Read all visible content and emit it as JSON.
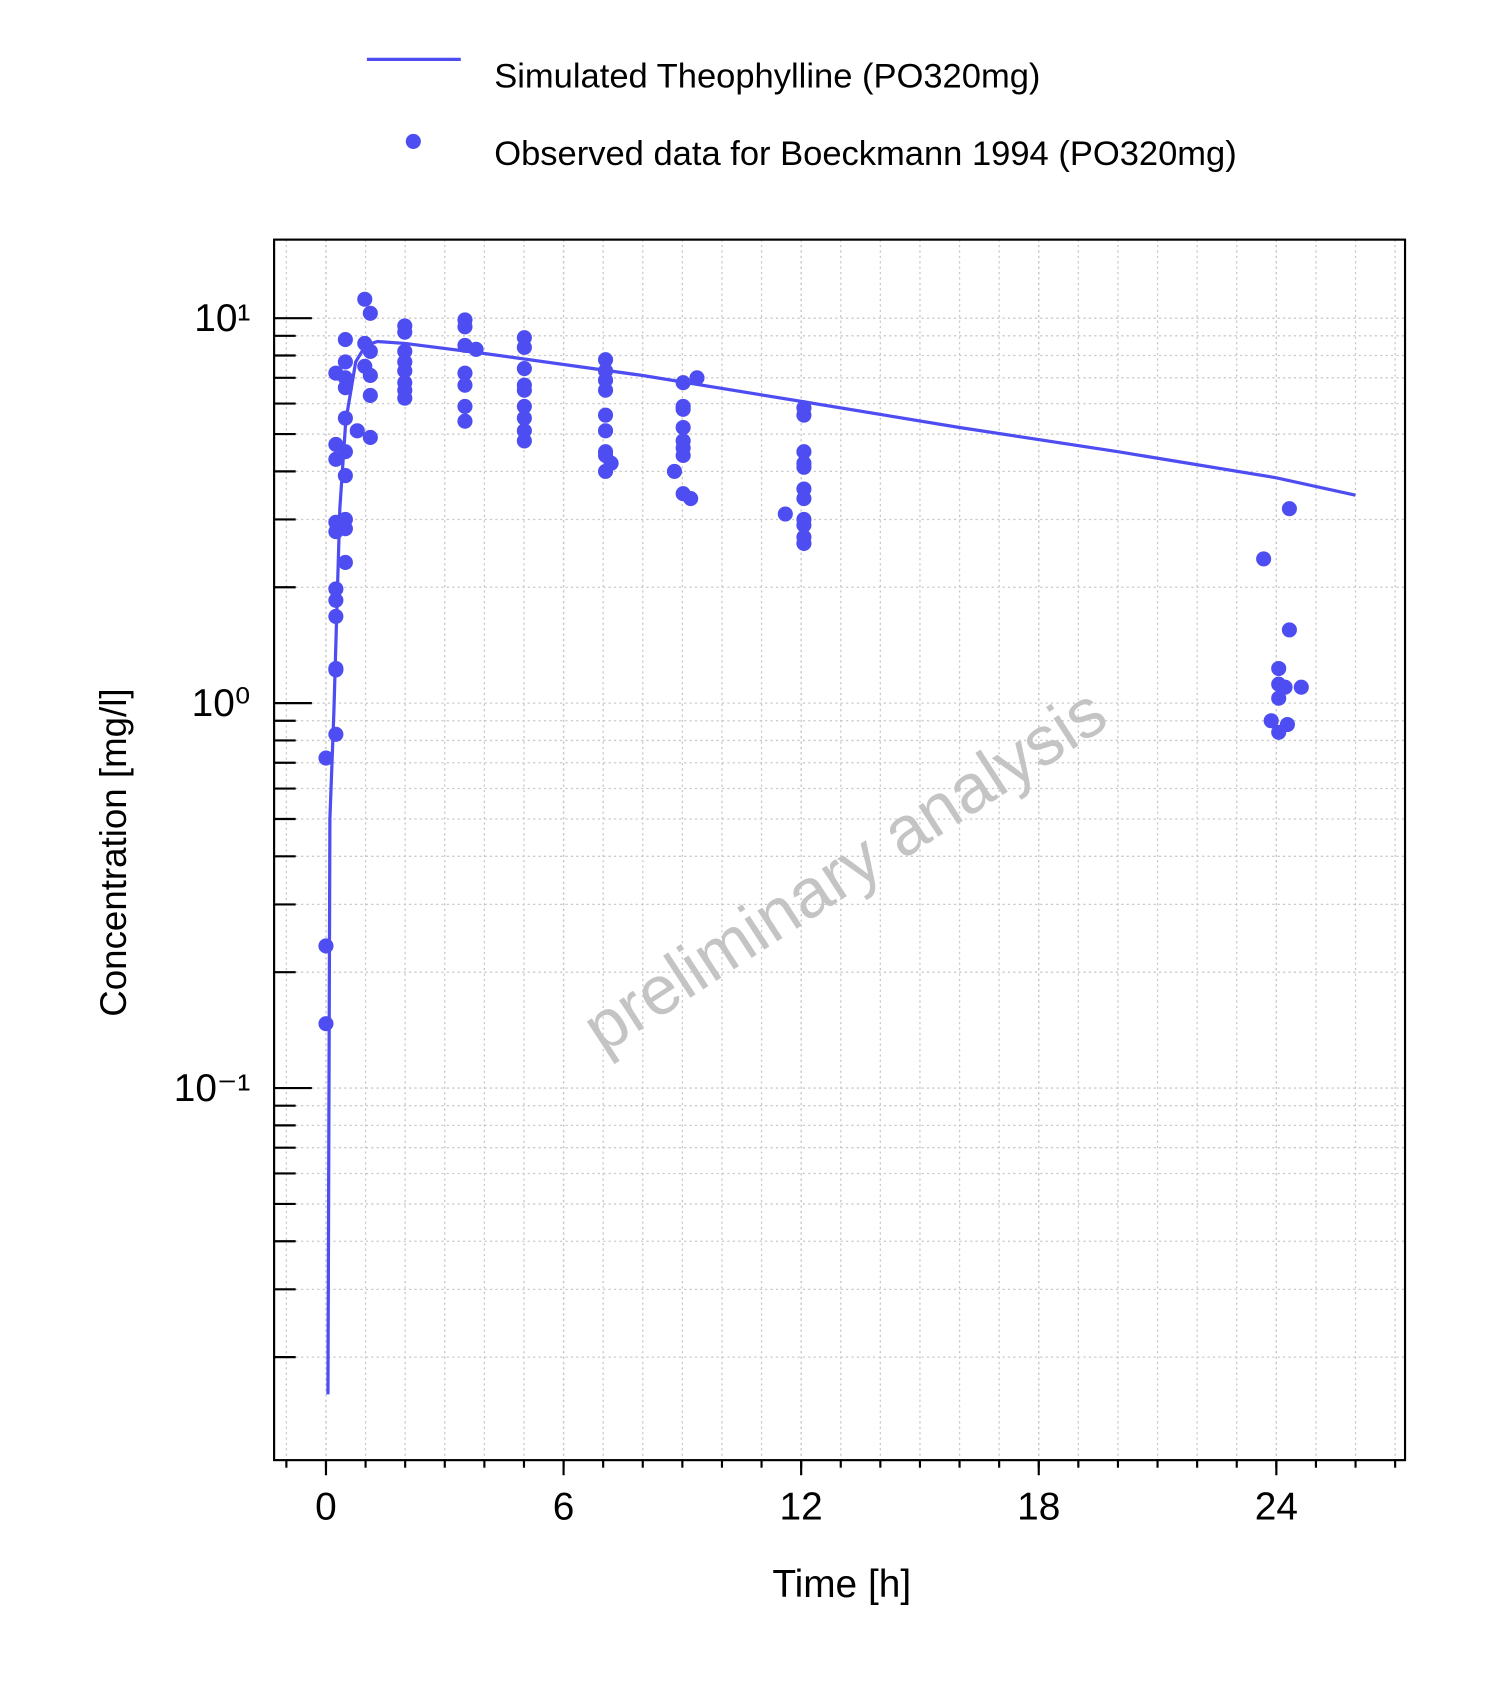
{
  "chart_data": {
    "type": "line",
    "x_label": "Time [h]",
    "y_label": "Concentration [mg/l]",
    "annotation": "preliminary analysis",
    "ylog": true,
    "grid": true,
    "legend": "top",
    "x_minor_step": 1,
    "xlim": [
      -1.31,
      27.25
    ],
    "xticks": [
      0,
      6,
      12,
      18,
      24
    ],
    "ylim": [
      0.0108,
      16
    ],
    "yticks": [
      {
        "value": 0.1,
        "label": "10⁻¹"
      },
      {
        "value": 1,
        "label": "10⁰"
      },
      {
        "value": 10,
        "label": "10¹"
      }
    ],
    "series": [
      {
        "name": "Simulated Theophylline (PO320mg)",
        "type": "line",
        "color": "#4d4df2",
        "x": [
          0.05,
          0.1,
          0.2,
          0.35,
          0.5,
          0.75,
          1.0,
          1.3,
          2,
          4,
          8,
          12,
          16,
          20,
          24,
          26
        ],
        "values": [
          0.016,
          0.5,
          0.95,
          3.2,
          5.4,
          7.7,
          8.5,
          8.7,
          8.6,
          8.1,
          7.1,
          6.08,
          5.2,
          4.5,
          3.85,
          3.47
        ]
      },
      {
        "name": "Observed data for Boeckmann 1994 (PO320mg)",
        "type": "scatter",
        "color": "#4d4df2",
        "x": [
          0,
          0,
          0,
          0.25,
          0.25,
          0.25,
          0.25,
          0.25,
          0.25,
          0.25,
          0.25,
          0.25,
          0.25,
          0.25,
          0.49,
          0.49,
          0.49,
          0.49,
          0.49,
          0.49,
          0.49,
          0.49,
          0.49,
          0.49,
          0.79,
          0.98,
          0.98,
          0.98,
          1.12,
          1.12,
          1.12,
          1.12,
          1.12,
          1.99,
          1.99,
          1.99,
          1.99,
          1.99,
          1.99,
          1.99,
          1.99,
          3.51,
          3.51,
          3.51,
          3.51,
          3.51,
          3.51,
          3.51,
          3.79,
          5.01,
          5.01,
          5.01,
          5.01,
          5.01,
          5.01,
          5.01,
          5.01,
          5.01,
          7.06,
          7.06,
          7.06,
          7.06,
          7.06,
          7.06,
          7.06,
          7.06,
          7.06,
          7.2,
          9.02,
          9.02,
          9.02,
          9.02,
          9.02,
          9.02,
          9.02,
          9.02,
          9.37,
          9.21,
          8.8,
          12.07,
          12.07,
          12.07,
          12.07,
          12.07,
          12.07,
          12.07,
          12.07,
          12.07,
          12.07,
          12.07,
          11.6,
          23.68,
          23.87,
          24.06,
          24.06,
          24.06,
          24.06,
          24.22,
          24.28,
          24.33,
          24.33,
          24.63
        ],
        "values": [
          0.72,
          0.234,
          0.147,
          0.83,
          1.22,
          1.23,
          1.68,
          1.85,
          1.98,
          2.79,
          2.95,
          4.3,
          4.7,
          7.2,
          2.32,
          2.84,
          3.0,
          3.9,
          4.5,
          5.5,
          6.6,
          7.0,
          7.7,
          8.8,
          5.1,
          11.2,
          7.5,
          8.6,
          10.3,
          6.3,
          8.2,
          4.9,
          7.1,
          9.55,
          9.2,
          8.2,
          7.7,
          7.3,
          6.8,
          6.5,
          6.2,
          9.9,
          9.5,
          8.5,
          7.2,
          6.7,
          5.9,
          5.4,
          8.3,
          8.9,
          8.4,
          7.4,
          6.7,
          6.5,
          5.9,
          5.5,
          5.1,
          4.8,
          7.8,
          7.3,
          6.9,
          6.5,
          5.6,
          5.1,
          4.5,
          4.4,
          4.0,
          4.2,
          6.8,
          5.9,
          5.8,
          5.2,
          4.8,
          4.6,
          4.4,
          3.5,
          7.0,
          3.4,
          4.0,
          5.85,
          5.6,
          4.5,
          4.2,
          4.1,
          3.6,
          3.4,
          3.0,
          2.9,
          2.7,
          2.6,
          3.1,
          2.37,
          0.9,
          0.84,
          1.23,
          1.12,
          1.03,
          1.1,
          0.88,
          3.2,
          1.55,
          1.1
        ]
      }
    ]
  }
}
